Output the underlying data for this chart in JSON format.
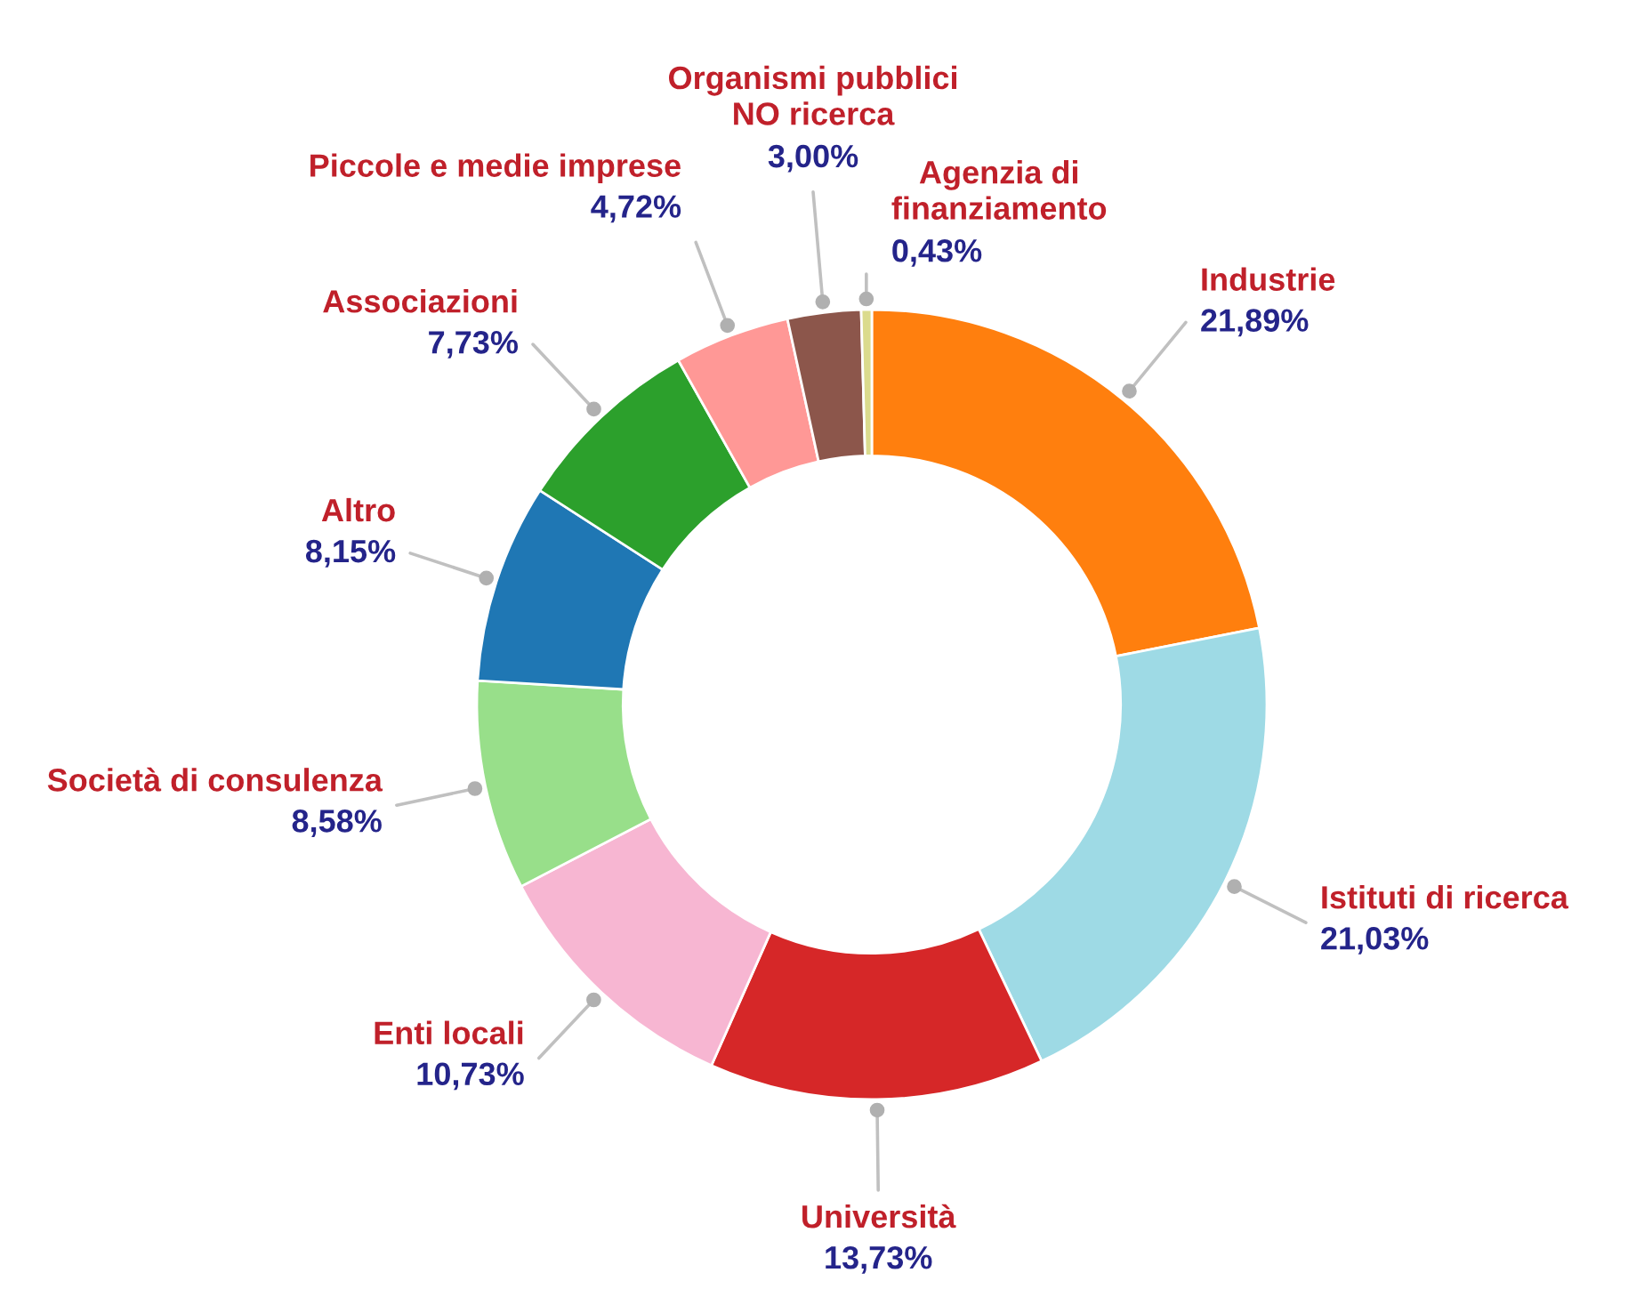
{
  "chart_data": {
    "type": "donut",
    "categories": [
      "Industrie",
      "Istituti di ricerca",
      "Università",
      "Enti locali",
      "Società di consulenza",
      "Altro",
      "Associazioni",
      "Piccole e medie imprese",
      "Organismi pubblici\nNO ricerca",
      "Agenzia di\nfinanziamento"
    ],
    "values": [
      21.89,
      21.03,
      13.73,
      10.73,
      8.58,
      8.15,
      7.73,
      4.72,
      3.0,
      0.43
    ],
    "colors": [
      "#ff7f0e",
      "#9edae5",
      "#d62728",
      "#f7b6d2",
      "#98df8a",
      "#1f77b4",
      "#2ca02c",
      "#ff9896",
      "#8c564b",
      "#dbdb8d"
    ],
    "value_labels": [
      "21,89%",
      "21,03%",
      "13,73%",
      "10,73%",
      "8,58%",
      "8,15%",
      "7,73%",
      "4,72%",
      "3,00%",
      "0,43%"
    ],
    "legend": false
  }
}
